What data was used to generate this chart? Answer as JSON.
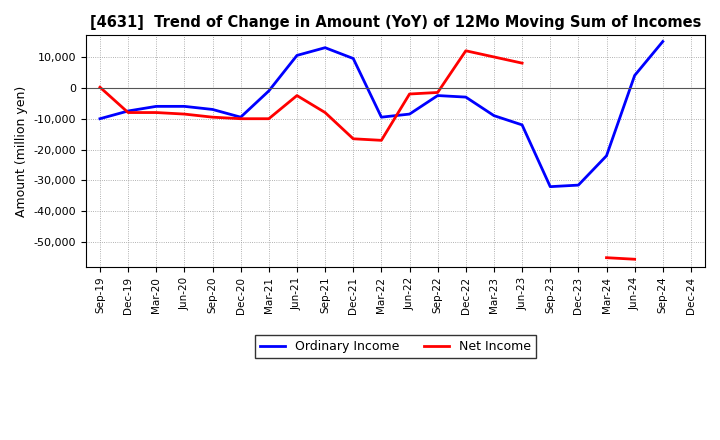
{
  "title": "[4631]  Trend of Change in Amount (YoY) of 12Mo Moving Sum of Incomes",
  "ylabel": "Amount (million yen)",
  "x_labels": [
    "Sep-19",
    "Dec-19",
    "Mar-20",
    "Jun-20",
    "Sep-20",
    "Dec-20",
    "Mar-21",
    "Jun-21",
    "Sep-21",
    "Dec-21",
    "Mar-22",
    "Jun-22",
    "Sep-22",
    "Dec-22",
    "Mar-23",
    "Jun-23",
    "Sep-23",
    "Dec-23",
    "Mar-24",
    "Jun-24",
    "Sep-24",
    "Dec-24"
  ],
  "ordinary_income": [
    -10000,
    -7500,
    -6000,
    -6000,
    -7000,
    -9500,
    -1000,
    10500,
    13000,
    9500,
    -9500,
    -8500,
    -2500,
    -3000,
    -9000,
    -12000,
    -32000,
    -31500,
    -22000,
    4000,
    15000,
    null
  ],
  "net_income": [
    200,
    -8000,
    -8000,
    -8500,
    -9500,
    -10000,
    -10000,
    -2500,
    -8000,
    -16500,
    -17000,
    -2000,
    -1500,
    12000,
    10000,
    8000,
    null,
    null,
    -55000,
    -55500,
    null,
    null
  ],
  "ordinary_income_color": "#0000FF",
  "net_income_color": "#FF0000",
  "ylim": [
    -58000,
    17000
  ],
  "yticks": [
    -50000,
    -40000,
    -30000,
    -20000,
    -10000,
    0,
    10000
  ],
  "background_color": "#FFFFFF",
  "grid_color": "#999999",
  "legend_labels": [
    "Ordinary Income",
    "Net Income"
  ],
  "linewidth": 2.0
}
